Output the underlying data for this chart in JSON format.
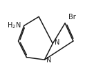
{
  "bg_color": "#ffffff",
  "line_color": "#1a1a1a",
  "text_color": "#1a1a1a",
  "bond_width": 1.1,
  "font_size": 7.0,
  "figsize": [
    1.36,
    1.08
  ],
  "dpi": 100,
  "xlim": [
    0.05,
    0.95
  ],
  "ylim": [
    0.08,
    0.98
  ]
}
